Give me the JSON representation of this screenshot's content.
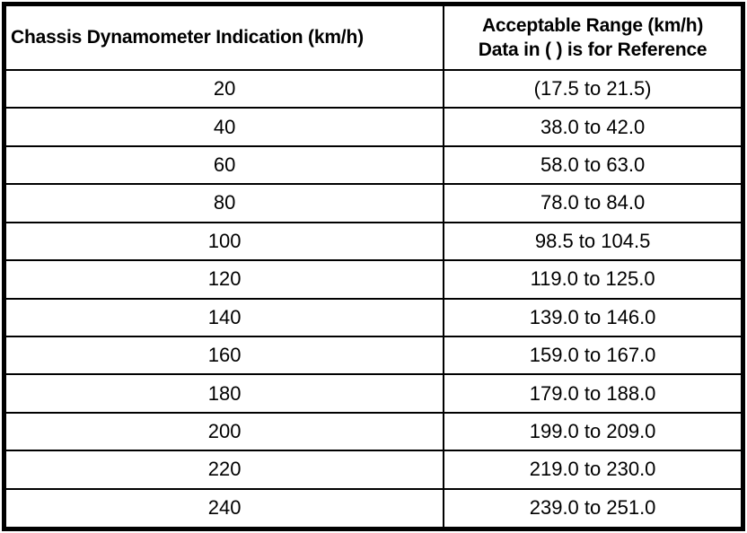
{
  "chart_data": {
    "type": "table",
    "columns": [
      "Chassis Dynamometer Indication (km/h)",
      "Acceptable Range (km/h) Data in ( ) is for Reference"
    ],
    "rows": [
      [
        "20",
        "(17.5 to 21.5)"
      ],
      [
        "40",
        "38.0 to 42.0"
      ],
      [
        "60",
        "58.0 to 63.0"
      ],
      [
        "80",
        "78.0 to 84.0"
      ],
      [
        "100",
        "98.5 to 104.5"
      ],
      [
        "120",
        "119.0 to 125.0"
      ],
      [
        "140",
        "139.0 to 146.0"
      ],
      [
        "160",
        "159.0 to 167.0"
      ],
      [
        "180",
        "179.0 to 188.0"
      ],
      [
        "200",
        "199.0 to 209.0"
      ],
      [
        "220",
        "219.0 to 230.0"
      ],
      [
        "240",
        "239.0 to 251.0"
      ]
    ]
  },
  "header": {
    "col1": "Chassis Dynamometer Indication (km/h)",
    "col2_line1": "Acceptable Range (km/h)",
    "col2_line2": "Data in ( ) is for Reference"
  },
  "rows": [
    {
      "indication": "20",
      "range": "(17.5 to 21.5)"
    },
    {
      "indication": "40",
      "range": "38.0 to 42.0"
    },
    {
      "indication": "60",
      "range": "58.0 to 63.0"
    },
    {
      "indication": "80",
      "range": "78.0 to 84.0"
    },
    {
      "indication": "100",
      "range": "98.5 to 104.5"
    },
    {
      "indication": "120",
      "range": "119.0 to 125.0"
    },
    {
      "indication": "140",
      "range": "139.0 to 146.0"
    },
    {
      "indication": "160",
      "range": "159.0 to 167.0"
    },
    {
      "indication": "180",
      "range": "179.0 to 188.0"
    },
    {
      "indication": "200",
      "range": "199.0 to 209.0"
    },
    {
      "indication": "220",
      "range": "219.0 to 230.0"
    },
    {
      "indication": "240",
      "range": "239.0 to 251.0"
    }
  ],
  "colors": {
    "border": "#000000",
    "background": "#ffffff",
    "text": "#000000"
  }
}
